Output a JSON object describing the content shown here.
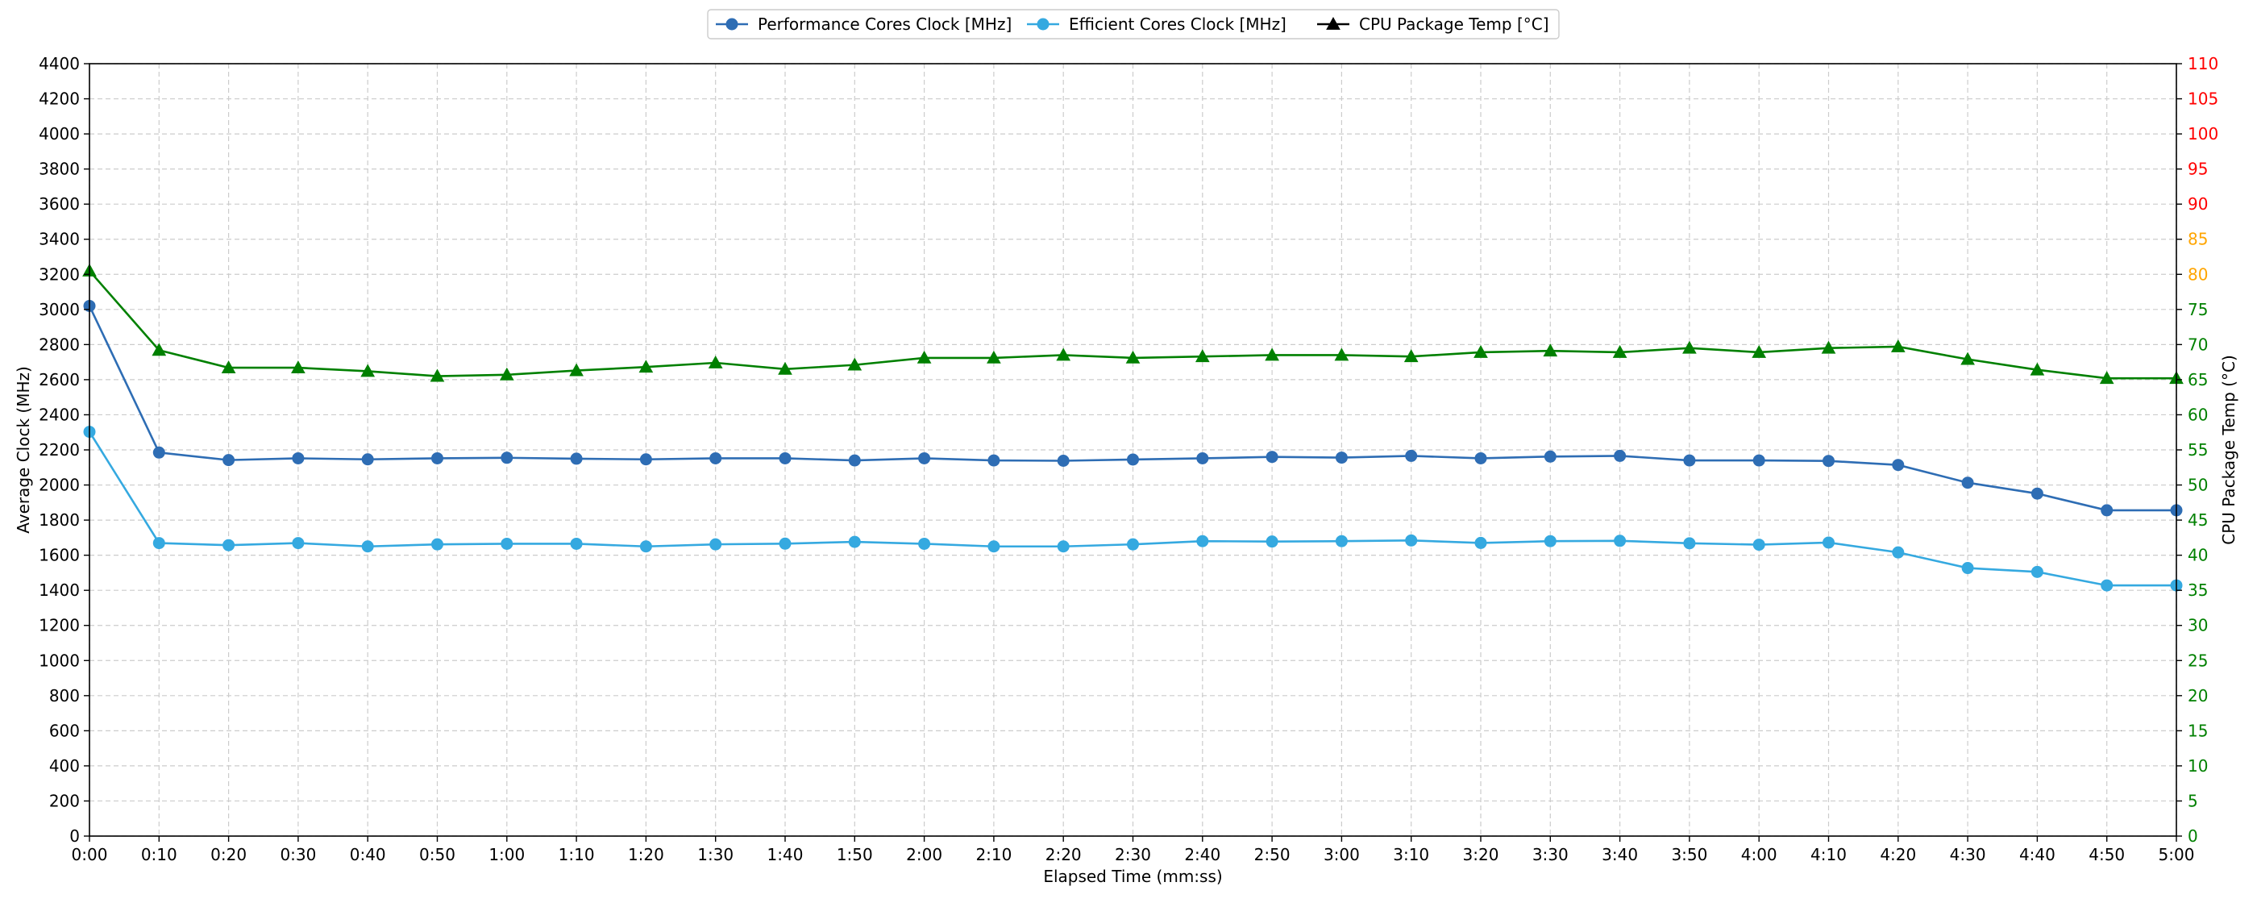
{
  "chart_data": {
    "type": "line",
    "xlabel": "Elapsed Time (mm:ss)",
    "ylabel": "Average Clock (MHz)",
    "y2label": "CPU Package Temp (°C)",
    "x": [
      "0:00",
      "0:10",
      "0:20",
      "0:30",
      "0:40",
      "0:50",
      "1:00",
      "1:10",
      "1:20",
      "1:30",
      "1:40",
      "1:50",
      "2:00",
      "2:10",
      "2:20",
      "2:30",
      "2:40",
      "2:50",
      "3:00",
      "3:10",
      "3:20",
      "3:30",
      "3:40",
      "3:50",
      "4:00",
      "4:10",
      "4:20",
      "4:30",
      "4:40",
      "4:50",
      "5:00"
    ],
    "ylim": [
      0,
      4400
    ],
    "y_ticks": [
      0,
      200,
      400,
      600,
      800,
      1000,
      1200,
      1400,
      1600,
      1800,
      2000,
      2200,
      2400,
      2600,
      2800,
      3000,
      3200,
      3400,
      3600,
      3800,
      4000,
      4200,
      4400
    ],
    "y2lim": [
      0,
      110
    ],
    "y2_ticks": [
      0,
      5,
      10,
      15,
      20,
      25,
      30,
      35,
      40,
      45,
      50,
      55,
      60,
      65,
      70,
      75,
      80,
      85,
      90,
      95,
      100,
      105,
      110
    ],
    "y2_tick_colors": [
      "#008000",
      "#008000",
      "#008000",
      "#008000",
      "#008000",
      "#008000",
      "#008000",
      "#008000",
      "#008000",
      "#008000",
      "#008000",
      "#008000",
      "#008000",
      "#008000",
      "#008000",
      "#008000",
      "#ffa500",
      "#ffa500",
      "#ff0000",
      "#ff0000",
      "#ff0000",
      "#ff0000",
      "#ff0000"
    ],
    "grid": true,
    "legend_position": "top-center",
    "series": [
      {
        "name": "Performance Cores Clock [MHz]",
        "axis": "left",
        "color": "#2e6db4",
        "marker": "circle",
        "values": [
          3020,
          2185,
          2142,
          2152,
          2146,
          2152,
          2155,
          2150,
          2146,
          2152,
          2152,
          2140,
          2152,
          2140,
          2138,
          2145,
          2152,
          2160,
          2156,
          2166,
          2152,
          2162,
          2166,
          2140,
          2140,
          2137,
          2114,
          2013,
          1951,
          1856,
          1856
        ]
      },
      {
        "name": "Efficient Cores Clock [MHz]",
        "axis": "left",
        "color": "#35a9e0",
        "marker": "circle",
        "values": [
          2303,
          1669,
          1657,
          1669,
          1650,
          1662,
          1665,
          1665,
          1650,
          1662,
          1666,
          1676,
          1665,
          1650,
          1650,
          1662,
          1680,
          1678,
          1680,
          1684,
          1670,
          1680,
          1682,
          1668,
          1660,
          1672,
          1616,
          1527,
          1505,
          1428,
          1428
        ]
      },
      {
        "name": "CPU Package Temp [°C]",
        "axis": "right",
        "color": "#008000",
        "legend_color": "#000000",
        "marker": "triangle",
        "values": [
          80.5,
          69.2,
          66.7,
          66.7,
          66.2,
          65.5,
          65.7,
          66.3,
          66.8,
          67.4,
          66.5,
          67.1,
          68.1,
          68.1,
          68.5,
          68.1,
          68.3,
          68.5,
          68.5,
          68.3,
          68.9,
          69.1,
          68.9,
          69.5,
          68.9,
          69.5,
          69.7,
          67.9,
          66.4,
          65.2,
          65.2
        ]
      }
    ]
  }
}
